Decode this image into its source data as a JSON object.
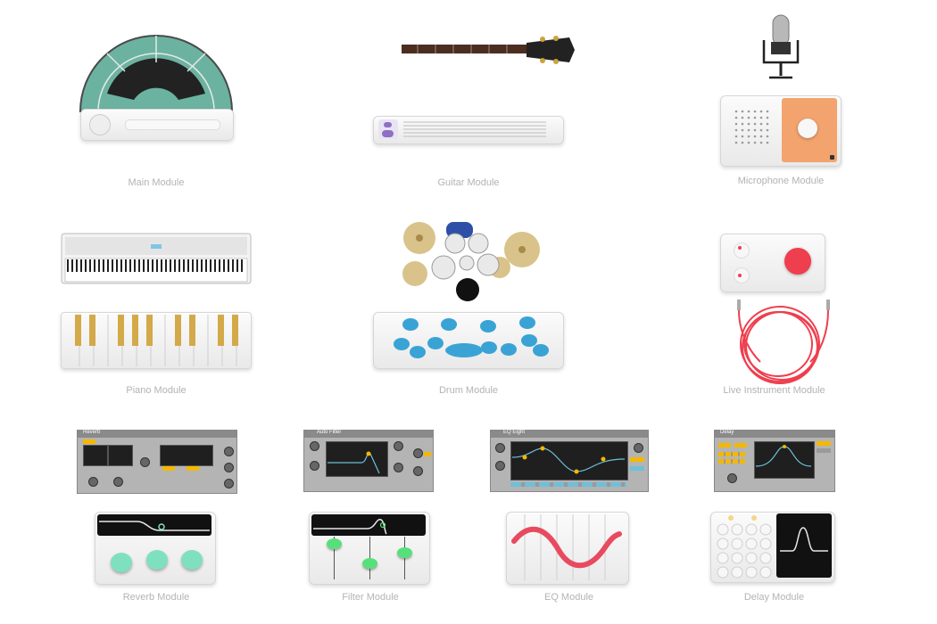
{
  "modules": {
    "main": {
      "label": "Main Module"
    },
    "guitar": {
      "label": "Guitar Module"
    },
    "microphone": {
      "label": "Microphone Module"
    },
    "piano": {
      "label": "Piano Module"
    },
    "drum": {
      "label": "Drum Module"
    },
    "live": {
      "label": "Live Instrument Module"
    },
    "reverb": {
      "label": "Reverb Module",
      "device_title": "Reverb"
    },
    "filter": {
      "label": "Filter Module",
      "device_title": "Auto Filter"
    },
    "eq": {
      "label": "EQ Module",
      "device_title": "EQ Eight"
    },
    "delay": {
      "label": "Delay Module",
      "device_title": "Delay"
    }
  },
  "colors": {
    "teal": "#6bb3a0",
    "lavender": "#8f6fc4",
    "orange": "#f3a36d",
    "red": "#ef3e4e",
    "drum_blue": "#3aa3d6",
    "knob_green": "#7fe0bf",
    "filter_green": "#57e07a",
    "eq_wave": "#e84a5f",
    "ableton_yellow": "#f5b800",
    "ableton_blue": "#6ec0d8"
  }
}
